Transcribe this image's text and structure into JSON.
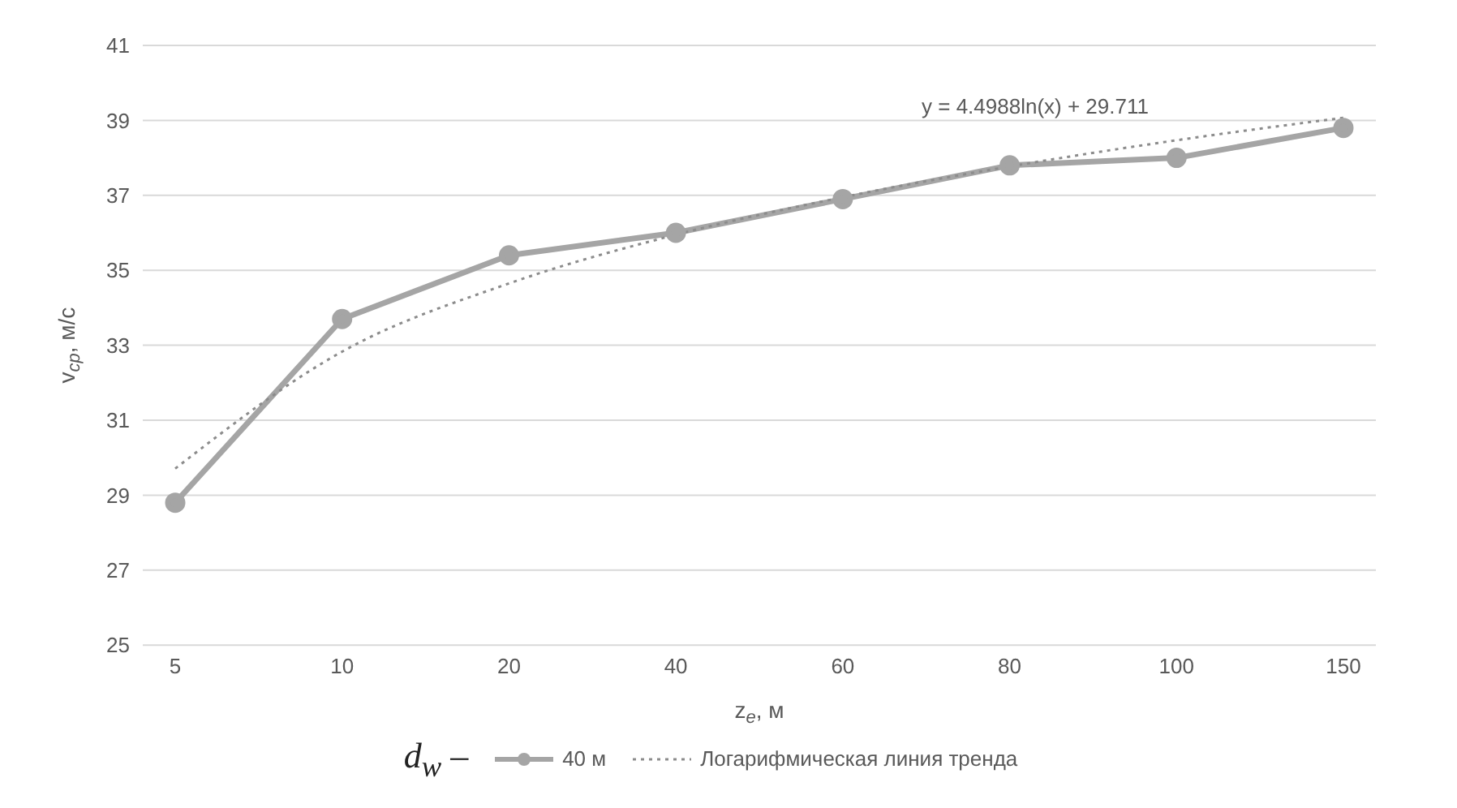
{
  "chart_data": {
    "type": "line",
    "xlabel": "z$_{e}$, м",
    "ylabel": "v$_{ср}$, м/с",
    "legend_title": "d$_{w}$ –",
    "categories": [
      "5",
      "10",
      "20",
      "40",
      "60",
      "80",
      "100",
      "150"
    ],
    "series": [
      {
        "name": "40 м",
        "color": "#a5a5a5",
        "values": [
          28.8,
          33.7,
          35.4,
          36.0,
          36.9,
          37.8,
          38.0,
          38.8
        ],
        "marker": "circle",
        "line_style": "solid"
      },
      {
        "name": "Логарифмическая линия тренда",
        "color": "#8c8c8c",
        "values": [
          29.71,
          32.83,
          34.65,
          35.95,
          36.95,
          37.77,
          38.47,
          39.07
        ],
        "marker": "none",
        "line_style": "dotted"
      }
    ],
    "annotations": [
      "y = 4.4988ln(x) + 29.711"
    ],
    "ylim": [
      25,
      41
    ],
    "yticks": [
      25,
      27,
      29,
      31,
      33,
      35,
      37,
      39,
      41
    ],
    "grid": "y",
    "legend": "bottom"
  }
}
